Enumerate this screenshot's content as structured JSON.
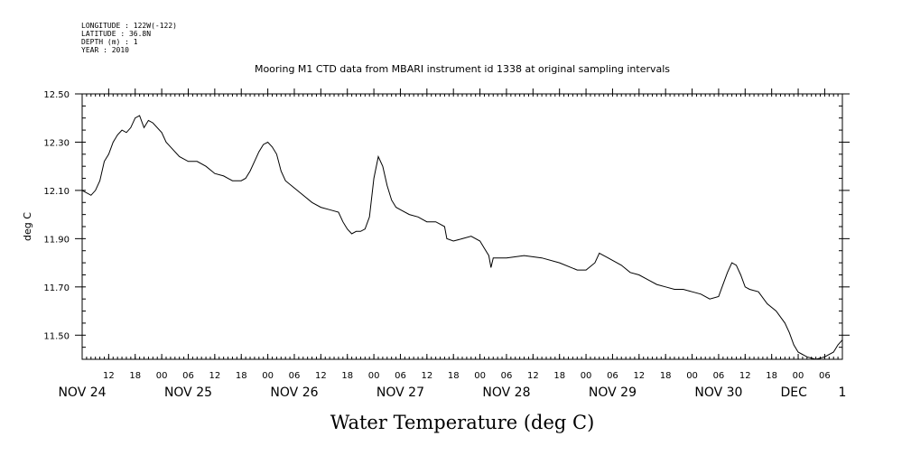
{
  "header": {
    "meta": [
      "LONGITUDE : 122W(-122)",
      "LATITUDE : 36.8N",
      "DEPTH (m) : 1",
      "YEAR : 2010"
    ],
    "title": "Mooring M1 CTD data from MBARI instrument id 1338 at original sampling intervals"
  },
  "chart_data": {
    "type": "line",
    "title": "Mooring M1 CTD data from MBARI instrument id 1338 at original sampling intervals",
    "xlabel": "Water Temperature (deg C)",
    "ylabel": "deg C",
    "grid": false,
    "x_unit": "hour",
    "xlim": [
      "2010-11-24 06:00",
      "2010-12-01 10:00"
    ],
    "ylim": [
      11.4,
      12.5
    ],
    "y_ticks": [
      11.5,
      11.7,
      11.9,
      12.1,
      12.3,
      12.5
    ],
    "y_tick_labels": [
      "11.50",
      "11.70",
      "11.90",
      "12.10",
      "12.30",
      "12.50"
    ],
    "x_hour_ticks": [
      {
        "x": "2010-11-24 12:00",
        "label": "12"
      },
      {
        "x": "2010-11-24 18:00",
        "label": "18"
      },
      {
        "x": "2010-11-25 00:00",
        "label": "00"
      },
      {
        "x": "2010-11-25 06:00",
        "label": "06"
      },
      {
        "x": "2010-11-25 12:00",
        "label": "12"
      },
      {
        "x": "2010-11-25 18:00",
        "label": "18"
      },
      {
        "x": "2010-11-26 00:00",
        "label": "00"
      },
      {
        "x": "2010-11-26 06:00",
        "label": "06"
      },
      {
        "x": "2010-11-26 12:00",
        "label": "12"
      },
      {
        "x": "2010-11-26 18:00",
        "label": "18"
      },
      {
        "x": "2010-11-27 00:00",
        "label": "00"
      },
      {
        "x": "2010-11-27 06:00",
        "label": "06"
      },
      {
        "x": "2010-11-27 12:00",
        "label": "12"
      },
      {
        "x": "2010-11-27 18:00",
        "label": "18"
      },
      {
        "x": "2010-11-28 00:00",
        "label": "00"
      },
      {
        "x": "2010-11-28 06:00",
        "label": "06"
      },
      {
        "x": "2010-11-28 12:00",
        "label": "12"
      },
      {
        "x": "2010-11-28 18:00",
        "label": "18"
      },
      {
        "x": "2010-11-29 00:00",
        "label": "00"
      },
      {
        "x": "2010-11-29 06:00",
        "label": "06"
      },
      {
        "x": "2010-11-29 12:00",
        "label": "12"
      },
      {
        "x": "2010-11-29 18:00",
        "label": "18"
      },
      {
        "x": "2010-11-30 00:00",
        "label": "00"
      },
      {
        "x": "2010-11-30 06:00",
        "label": "06"
      },
      {
        "x": "2010-11-30 12:00",
        "label": "12"
      },
      {
        "x": "2010-11-30 18:00",
        "label": "18"
      },
      {
        "x": "2010-12-01 00:00",
        "label": "00"
      },
      {
        "x": "2010-12-01 06:00",
        "label": "06"
      }
    ],
    "x_date_labels": [
      {
        "x": "2010-11-24 06:00",
        "label": "NOV 24"
      },
      {
        "x": "2010-11-25 06:00",
        "label": "NOV 25"
      },
      {
        "x": "2010-11-26 06:00",
        "label": "NOV 26"
      },
      {
        "x": "2010-11-27 06:00",
        "label": "NOV 27"
      },
      {
        "x": "2010-11-28 06:00",
        "label": "NOV 28"
      },
      {
        "x": "2010-11-29 06:00",
        "label": "NOV 29"
      },
      {
        "x": "2010-11-30 06:00",
        "label": "NOV 30"
      },
      {
        "x": "2010-11-30 23:00",
        "label": "DEC"
      },
      {
        "x": "2010-12-01 10:00",
        "label": "1"
      }
    ],
    "series": [
      {
        "color": "#000000",
        "points": [
          [
            "2010-11-24 06:00",
            12.1
          ],
          [
            "2010-11-24 08:00",
            12.08
          ],
          [
            "2010-11-24 09:00",
            12.1
          ],
          [
            "2010-11-24 10:00",
            12.14
          ],
          [
            "2010-11-24 11:00",
            12.22
          ],
          [
            "2010-11-24 12:00",
            12.25
          ],
          [
            "2010-11-24 13:00",
            12.3
          ],
          [
            "2010-11-24 14:00",
            12.33
          ],
          [
            "2010-11-24 15:00",
            12.35
          ],
          [
            "2010-11-24 16:00",
            12.34
          ],
          [
            "2010-11-24 17:00",
            12.36
          ],
          [
            "2010-11-24 18:00",
            12.4
          ],
          [
            "2010-11-24 19:00",
            12.41
          ],
          [
            "2010-11-24 20:00",
            12.36
          ],
          [
            "2010-11-24 21:00",
            12.39
          ],
          [
            "2010-11-24 22:00",
            12.38
          ],
          [
            "2010-11-25 00:00",
            12.34
          ],
          [
            "2010-11-25 01:00",
            12.3
          ],
          [
            "2010-11-25 02:00",
            12.28
          ],
          [
            "2010-11-25 04:00",
            12.24
          ],
          [
            "2010-11-25 06:00",
            12.22
          ],
          [
            "2010-11-25 08:00",
            12.22
          ],
          [
            "2010-11-25 10:00",
            12.2
          ],
          [
            "2010-11-25 12:00",
            12.17
          ],
          [
            "2010-11-25 14:00",
            12.16
          ],
          [
            "2010-11-25 16:00",
            12.14
          ],
          [
            "2010-11-25 18:00",
            12.14
          ],
          [
            "2010-11-25 19:00",
            12.15
          ],
          [
            "2010-11-25 20:00",
            12.18
          ],
          [
            "2010-11-25 21:00",
            12.22
          ],
          [
            "2010-11-25 22:00",
            12.26
          ],
          [
            "2010-11-25 23:00",
            12.29
          ],
          [
            "2010-11-26 00:00",
            12.3
          ],
          [
            "2010-11-26 01:00",
            12.28
          ],
          [
            "2010-11-26 02:00",
            12.25
          ],
          [
            "2010-11-26 03:00",
            12.18
          ],
          [
            "2010-11-26 04:00",
            12.14
          ],
          [
            "2010-11-26 06:00",
            12.11
          ],
          [
            "2010-11-26 08:00",
            12.08
          ],
          [
            "2010-11-26 10:00",
            12.05
          ],
          [
            "2010-11-26 12:00",
            12.03
          ],
          [
            "2010-11-26 14:00",
            12.02
          ],
          [
            "2010-11-26 16:00",
            12.01
          ],
          [
            "2010-11-26 17:00",
            11.97
          ],
          [
            "2010-11-26 18:00",
            11.94
          ],
          [
            "2010-11-26 19:00",
            11.92
          ],
          [
            "2010-11-26 20:00",
            11.93
          ],
          [
            "2010-11-26 21:00",
            11.93
          ],
          [
            "2010-11-26 22:00",
            11.94
          ],
          [
            "2010-11-26 23:00",
            11.99
          ],
          [
            "2010-11-27 00:00",
            12.15
          ],
          [
            "2010-11-27 01:00",
            12.24
          ],
          [
            "2010-11-27 02:00",
            12.2
          ],
          [
            "2010-11-27 03:00",
            12.12
          ],
          [
            "2010-11-27 04:00",
            12.06
          ],
          [
            "2010-11-27 05:00",
            12.03
          ],
          [
            "2010-11-27 06:00",
            12.02
          ],
          [
            "2010-11-27 08:00",
            12.0
          ],
          [
            "2010-11-27 10:00",
            11.99
          ],
          [
            "2010-11-27 12:00",
            11.97
          ],
          [
            "2010-11-27 14:00",
            11.97
          ],
          [
            "2010-11-27 15:00",
            11.96
          ],
          [
            "2010-11-27 16:00",
            11.95
          ],
          [
            "2010-11-27 16:30",
            11.9
          ],
          [
            "2010-11-27 18:00",
            11.89
          ],
          [
            "2010-11-27 20:00",
            11.9
          ],
          [
            "2010-11-27 22:00",
            11.91
          ],
          [
            "2010-11-28 00:00",
            11.89
          ],
          [
            "2010-11-28 01:00",
            11.86
          ],
          [
            "2010-11-28 02:00",
            11.83
          ],
          [
            "2010-11-28 02:30",
            11.78
          ],
          [
            "2010-11-28 03:00",
            11.82
          ],
          [
            "2010-11-28 06:00",
            11.82
          ],
          [
            "2010-11-28 10:00",
            11.83
          ],
          [
            "2010-11-28 14:00",
            11.82
          ],
          [
            "2010-11-28 18:00",
            11.8
          ],
          [
            "2010-11-28 22:00",
            11.77
          ],
          [
            "2010-11-29 00:00",
            11.77
          ],
          [
            "2010-11-29 02:00",
            11.8
          ],
          [
            "2010-11-29 03:00",
            11.84
          ],
          [
            "2010-11-29 05:00",
            11.82
          ],
          [
            "2010-11-29 08:00",
            11.79
          ],
          [
            "2010-11-29 10:00",
            11.76
          ],
          [
            "2010-11-29 12:00",
            11.75
          ],
          [
            "2010-11-29 14:00",
            11.73
          ],
          [
            "2010-11-29 16:00",
            11.71
          ],
          [
            "2010-11-29 18:00",
            11.7
          ],
          [
            "2010-11-29 20:00",
            11.69
          ],
          [
            "2010-11-29 22:00",
            11.69
          ],
          [
            "2010-11-30 00:00",
            11.68
          ],
          [
            "2010-11-30 02:00",
            11.67
          ],
          [
            "2010-11-30 04:00",
            11.65
          ],
          [
            "2010-11-30 06:00",
            11.66
          ],
          [
            "2010-11-30 07:00",
            11.71
          ],
          [
            "2010-11-30 08:00",
            11.76
          ],
          [
            "2010-11-30 09:00",
            11.8
          ],
          [
            "2010-11-30 10:00",
            11.79
          ],
          [
            "2010-11-30 11:00",
            11.75
          ],
          [
            "2010-11-30 12:00",
            11.7
          ],
          [
            "2010-11-30 13:00",
            11.69
          ],
          [
            "2010-11-30 15:00",
            11.68
          ],
          [
            "2010-11-30 17:00",
            11.63
          ],
          [
            "2010-11-30 19:00",
            11.6
          ],
          [
            "2010-11-30 21:00",
            11.55
          ],
          [
            "2010-11-30 22:00",
            11.51
          ],
          [
            "2010-11-30 23:00",
            11.46
          ],
          [
            "2010-12-01 00:00",
            11.43
          ],
          [
            "2010-12-01 02:00",
            11.41
          ],
          [
            "2010-12-01 04:00",
            11.4
          ],
          [
            "2010-12-01 06:00",
            11.41
          ],
          [
            "2010-12-01 08:00",
            11.43
          ],
          [
            "2010-12-01 09:00",
            11.46
          ],
          [
            "2010-12-01 10:00",
            11.48
          ]
        ]
      }
    ]
  }
}
